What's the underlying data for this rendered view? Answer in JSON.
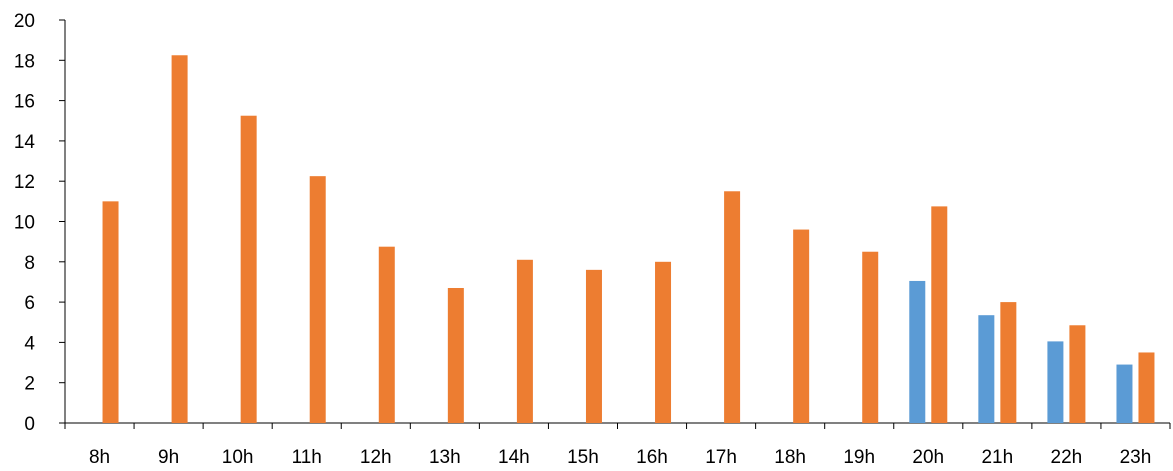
{
  "chart_data": {
    "type": "bar",
    "title": "",
    "xlabel": "",
    "ylabel": "",
    "ylim": [
      0,
      20
    ],
    "yticks": [
      "0",
      "2",
      "4",
      "6",
      "8",
      "10",
      "12",
      "14",
      "16",
      "18",
      "20"
    ],
    "grid": false,
    "legend": "none",
    "categories": [
      "8h",
      "9h",
      "10h",
      "11h",
      "12h",
      "13h",
      "14h",
      "15h",
      "16h",
      "17h",
      "18h",
      "19h",
      "20h",
      "21h",
      "22h",
      "23h"
    ],
    "series": [
      {
        "color": "#5B9BD5",
        "values": [
          null,
          null,
          null,
          null,
          null,
          null,
          null,
          null,
          null,
          null,
          null,
          null,
          7.05,
          5.35,
          4.05,
          2.9
        ]
      },
      {
        "color": "#ED7D31",
        "values": [
          11.0,
          18.25,
          15.25,
          12.25,
          8.75,
          6.7,
          8.1,
          7.6,
          8.0,
          11.5,
          9.6,
          8.5,
          10.75,
          6.0,
          4.85,
          3.5
        ]
      }
    ]
  }
}
